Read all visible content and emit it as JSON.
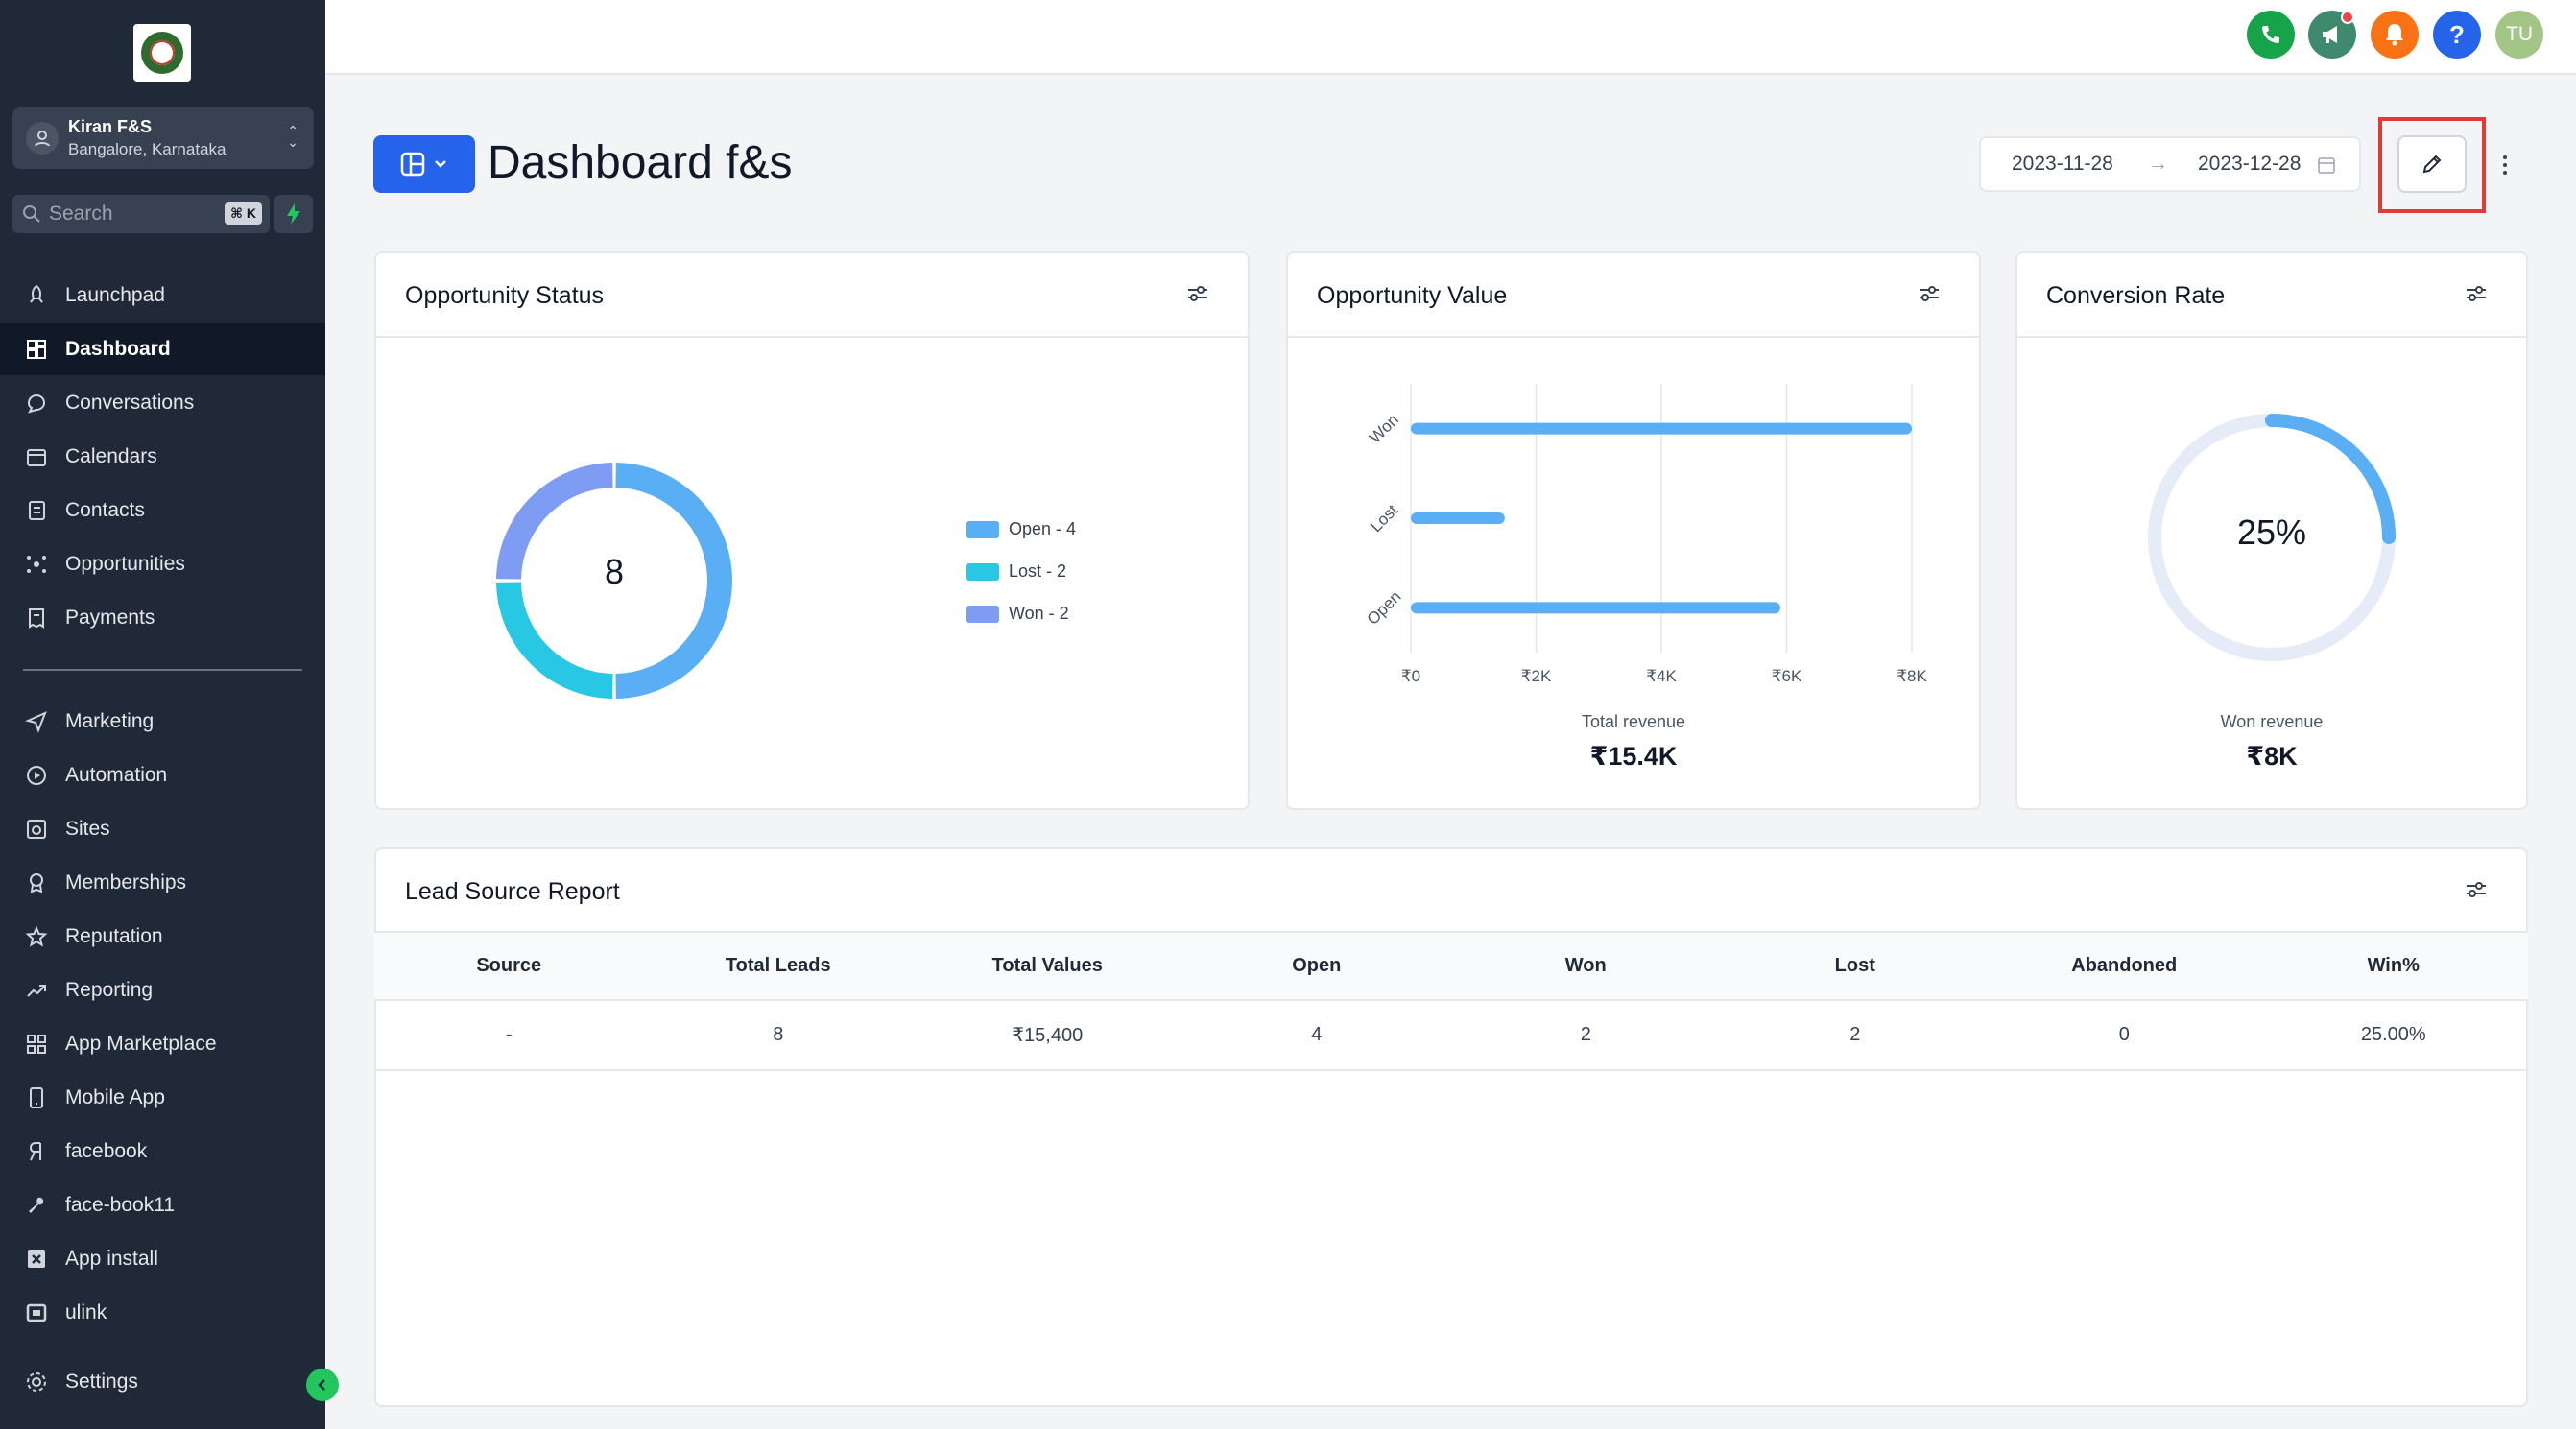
{
  "sidebar": {
    "account": {
      "name": "Kiran F&S",
      "location": "Bangalore, Karnataka"
    },
    "search": {
      "placeholder": "Search",
      "shortcut": "⌘ K"
    },
    "items": [
      {
        "label": "Launchpad",
        "icon": "rocket-icon"
      },
      {
        "label": "Dashboard",
        "icon": "dashboard-grid-icon",
        "active": true
      },
      {
        "label": "Conversations",
        "icon": "chat-bubble-icon"
      },
      {
        "label": "Calendars",
        "icon": "calendar-icon"
      },
      {
        "label": "Contacts",
        "icon": "contacts-book-icon"
      },
      {
        "label": "Opportunities",
        "icon": "opportunities-icon"
      },
      {
        "label": "Payments",
        "icon": "receipt-icon"
      },
      {
        "label": "Marketing",
        "icon": "paper-plane-icon"
      },
      {
        "label": "Automation",
        "icon": "play-circle-icon"
      },
      {
        "label": "Sites",
        "icon": "globe-window-icon"
      },
      {
        "label": "Memberships",
        "icon": "badge-icon"
      },
      {
        "label": "Reputation",
        "icon": "star-icon"
      },
      {
        "label": "Reporting",
        "icon": "trend-up-icon"
      },
      {
        "label": "App Marketplace",
        "icon": "apps-grid-icon"
      },
      {
        "label": "Mobile App",
        "icon": "phone-device-icon"
      },
      {
        "label": "facebook",
        "icon": "ya-letter-icon"
      },
      {
        "label": "face-book11",
        "icon": "wrench-icon"
      },
      {
        "label": "App install",
        "icon": "x-square-icon"
      },
      {
        "label": "ulink",
        "icon": "video-square-icon"
      }
    ],
    "settings_label": "Settings"
  },
  "topbar": {
    "avatar_initials": "TU",
    "help_label": "?"
  },
  "header": {
    "title": "Dashboard f&s",
    "date_from": "2023-11-28",
    "date_arrow": "→",
    "date_to": "2023-12-28"
  },
  "cards": {
    "status": {
      "title": "Opportunity Status",
      "center": "8"
    },
    "value": {
      "title": "Opportunity Value",
      "total_label": "Total revenue",
      "total_value": "₹15.4K"
    },
    "conversion": {
      "title": "Conversion Rate",
      "center": "25%",
      "label": "Won revenue",
      "value": "₹8K"
    },
    "lead_source": {
      "title": "Lead Source Report"
    }
  },
  "chart_data": [
    {
      "type": "pie",
      "variant": "donut",
      "labels": [
        "Open",
        "Lost",
        "Won"
      ],
      "values": [
        4,
        2,
        2
      ],
      "legend": [
        "Open - 4",
        "Lost - 2",
        "Won - 2"
      ],
      "colors": [
        "#5aaef4",
        "#28c8e4",
        "#7f9cf5"
      ],
      "legend_position": "right"
    },
    {
      "type": "bar",
      "orientation": "horizontal",
      "categories": [
        "Won",
        "Lost",
        "Open"
      ],
      "values": [
        8000,
        1500,
        5900
      ],
      "xticks": [
        "₹0",
        "₹2K",
        "₹4K",
        "₹6K",
        "₹8K"
      ],
      "xlim": [
        0,
        8000
      ],
      "color": "#5aaef4",
      "grid": true
    },
    {
      "type": "pie",
      "variant": "progress-ring",
      "values": [
        25,
        75
      ],
      "colors": [
        "#5aaef4",
        "#e5ecf7"
      ]
    }
  ],
  "table": {
    "headers": [
      "Source",
      "Total Leads",
      "Total Values",
      "Open",
      "Won",
      "Lost",
      "Abandoned",
      "Win%"
    ],
    "rows": [
      [
        "-",
        "8",
        "₹15,400",
        "4",
        "2",
        "2",
        "0",
        "25.00%"
      ]
    ]
  },
  "colors": {
    "sidebar_bg": "#1f2937",
    "accent": "#2563eb",
    "highlight_frame": "#e53935"
  }
}
